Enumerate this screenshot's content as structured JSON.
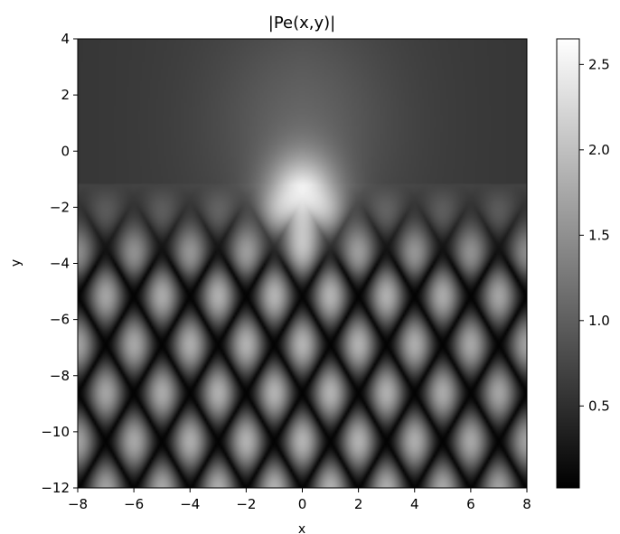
{
  "chart_data": {
    "type": "heatmap",
    "title": "|Pe(x,y)|",
    "xlabel": "x",
    "ylabel": "y",
    "xlim": [
      -8,
      8
    ],
    "ylim": [
      -12,
      4
    ],
    "x_ticks": [
      -8,
      -6,
      -4,
      -2,
      0,
      2,
      4,
      6,
      8
    ],
    "x_tick_labels": [
      "−8",
      "−6",
      "−4",
      "−2",
      "0",
      "2",
      "4",
      "6",
      "8"
    ],
    "y_ticks": [
      -12,
      -10,
      -8,
      -6,
      -4,
      -2,
      0,
      2,
      4
    ],
    "y_tick_labels": [
      "−12",
      "−10",
      "−8",
      "−6",
      "−4",
      "−2",
      "0",
      "2",
      "4"
    ],
    "colormap": "gray",
    "colorbar": {
      "range": [
        0.02,
        2.65
      ],
      "ticks": [
        0.5,
        1.0,
        1.5,
        2.0,
        2.5
      ],
      "tick_labels": [
        "0.5",
        "1.0",
        "1.5",
        "2.0",
        "2.5"
      ]
    },
    "field_features": {
      "peak": {
        "x": 0,
        "y": -2,
        "value": 2.65
      },
      "background_level": 0.7,
      "fringe_spacing": 2
    }
  }
}
